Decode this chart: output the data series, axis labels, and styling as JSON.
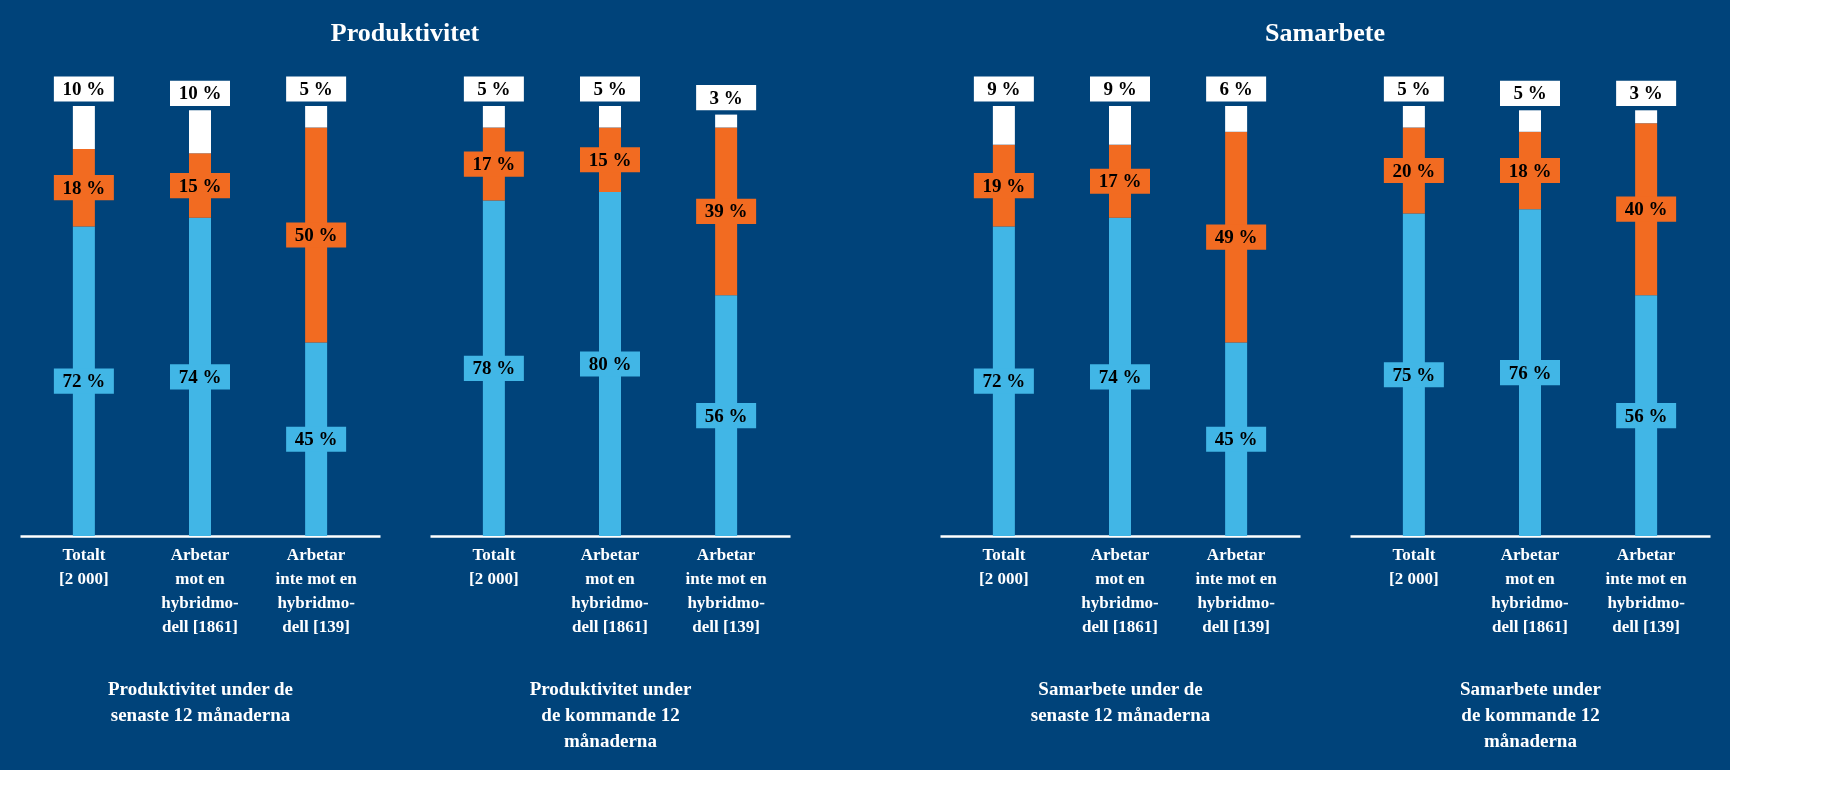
{
  "chart_data": [
    {
      "type": "bar",
      "stacked": true,
      "title": "Produktivitet",
      "xlabel": "Produktivitet under de\nsenaste 12 månaderna",
      "tick_labels": "x",
      "categories": [
        "Totalt\n[2 000]",
        "Arbetar\nmot en\nhybridmo-\ndell [1861]",
        "Arbetar\ninte mot en\nhybridmo-\ndell [139]"
      ],
      "series": [
        {
          "color": "#41b6e6",
          "values": [
            72,
            74,
            45
          ],
          "value_labels": [
            "72 %",
            "74 %",
            "45 %"
          ]
        },
        {
          "color": "#f26b21",
          "values": [
            18,
            15,
            50
          ],
          "value_labels": [
            "18 %",
            "15 %",
            "50 %"
          ]
        },
        {
          "color": "#ffffff",
          "values": [
            10,
            10,
            5
          ],
          "value_labels": [
            "10 %",
            "10 %",
            "5 %"
          ]
        }
      ]
    },
    {
      "type": "bar",
      "stacked": true,
      "xlabel": "Produktivitet under\nde kommande 12\nmånaderna",
      "tick_labels": "x",
      "categories": [
        "Totalt\n[2 000]",
        "Arbetar\nmot en\nhybridmo-\ndell [1861]",
        "Arbetar\ninte mot en\nhybridmo-\ndell [139]"
      ],
      "series": [
        {
          "color": "#41b6e6",
          "values": [
            78,
            80,
            56
          ],
          "value_labels": [
            "78 %",
            "80 %",
            "56 %"
          ]
        },
        {
          "color": "#f26b21",
          "values": [
            17,
            15,
            39
          ],
          "value_labels": [
            "17 %",
            "15 %",
            "39 %"
          ]
        },
        {
          "color": "#ffffff",
          "values": [
            5,
            5,
            3
          ],
          "value_labels": [
            "5 %",
            "5 %",
            "3 %"
          ]
        }
      ]
    },
    {
      "type": "bar",
      "stacked": true,
      "title": "Samarbete",
      "xlabel": "Samarbete under de\nsenaste 12 månaderna",
      "tick_labels": "x",
      "categories": [
        "Totalt\n[2 000]",
        "Arbetar\nmot en\nhybridmo-\ndell [1861]",
        "Arbetar\ninte mot en\nhybridmo-\ndell [139]"
      ],
      "series": [
        {
          "color": "#41b6e6",
          "values": [
            72,
            74,
            45
          ],
          "value_labels": [
            "72 %",
            "74 %",
            "45 %"
          ]
        },
        {
          "color": "#f26b21",
          "values": [
            19,
            17,
            49
          ],
          "value_labels": [
            "19 %",
            "17 %",
            "49 %"
          ]
        },
        {
          "color": "#ffffff",
          "values": [
            9,
            9,
            6
          ],
          "value_labels": [
            "9 %",
            "9 %",
            "6 %"
          ]
        }
      ]
    },
    {
      "type": "bar",
      "stacked": true,
      "xlabel": "Samarbete under\nde kommande 12\nmånaderna",
      "tick_labels": "x",
      "categories": [
        "Totalt\n[2 000]",
        "Arbetar\nmot en\nhybridmo-\ndell [1861]",
        "Arbetar\ninte mot en\nhybridmo-\ndell [139]"
      ],
      "series": [
        {
          "color": "#41b6e6",
          "values": [
            75,
            76,
            56
          ],
          "value_labels": [
            "75 %",
            "76 %",
            "56 %"
          ]
        },
        {
          "color": "#f26b21",
          "values": [
            20,
            18,
            40
          ],
          "value_labels": [
            "20 %",
            "18 %",
            "40 %"
          ]
        },
        {
          "color": "#ffffff",
          "values": [
            5,
            5,
            3
          ],
          "value_labels": [
            "5 %",
            "5 %",
            "3 %"
          ]
        }
      ]
    }
  ]
}
